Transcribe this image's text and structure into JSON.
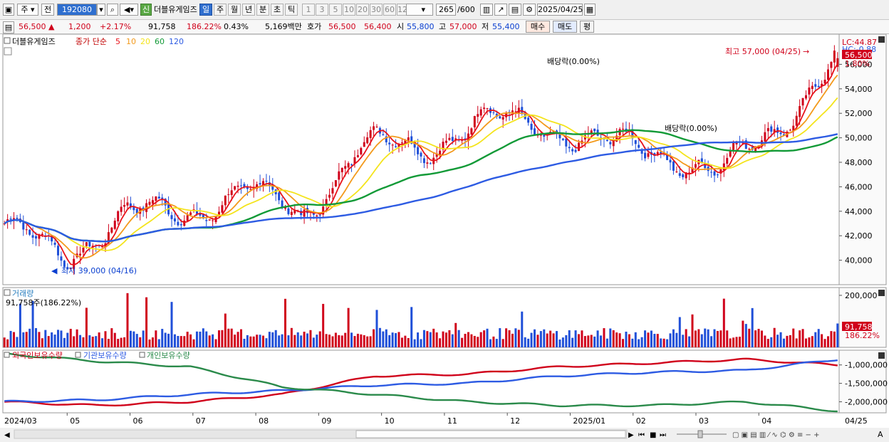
{
  "toolbar": {
    "period_label": "주",
    "prev_label": "전",
    "code": "192080",
    "new_badge": "신",
    "stock_name": "더블유게임즈",
    "timeframes": [
      "일",
      "주",
      "월",
      "년",
      "분",
      "초",
      "틱"
    ],
    "intervals": [
      "1",
      "3",
      "5",
      "10",
      "20",
      "30",
      "60",
      "120"
    ],
    "count": "265",
    "count_total": "/600",
    "date": "2025/04/25"
  },
  "quote": {
    "price": "56,500",
    "change": "1,200",
    "change_pct": "+2.17%",
    "volume": "91,758",
    "volume_ratio": "186.22%",
    "turnover": "0.43%",
    "amount": "5,169백만",
    "bid_label": "호가",
    "ask_price": "56,500",
    "bid_price": "56,400",
    "open_label": "시",
    "open": "55,800",
    "high_label": "고",
    "high": "57,000",
    "low_label": "저",
    "low": "55,400",
    "buy_label": "매수",
    "sell_label": "매도",
    "eval_label": "평"
  },
  "price_panel": {
    "name": "더블유게임즈",
    "ma_title": "종가 단순",
    "ma_periods": [
      "5",
      "10",
      "20",
      "60",
      "120"
    ],
    "ma_colors": [
      "#e8131b",
      "#f39a1c",
      "#f4e41c",
      "#129a37",
      "#2d5be3"
    ],
    "lc_label": "LC:44.87",
    "hc_label": "HC:-0.88",
    "current_label": "56,500",
    "current_pct": "1.80%",
    "high_annotation": "최고 57,000 (04/25)",
    "low_annotation": "최저 39,000 (04/16)",
    "dividend_label_1": "배당락(0.00%)",
    "dividend_label_2": "배당락(0.00%)"
  },
  "volume_panel": {
    "title": "거래량",
    "value_label": "91,758주(186.22%)",
    "current_label": "91,758",
    "current_pct": "186.22%"
  },
  "holdings_panel": {
    "series_names": [
      "외국인보유수량",
      "기관보유수량",
      "개인보유수량"
    ],
    "series_colors": [
      "#d0021b",
      "#2d5be3",
      "#2a8a4a"
    ]
  },
  "xaxis": {
    "labels": [
      "2024/03",
      "05",
      "06",
      "07",
      "08",
      "09",
      "10",
      "11",
      "12",
      "2025/01",
      "02",
      "03",
      "04"
    ],
    "right_label": "04/25"
  },
  "chart_data": [
    {
      "type": "candlestick",
      "title": "더블유게임즈",
      "x": [
        "2024/03",
        "2024/04",
        "2024/05",
        "2024/06",
        "2024/07",
        "2024/08",
        "2024/09",
        "2024/10",
        "2024/11",
        "2024/12",
        "2025/01",
        "2025/02",
        "2025/03",
        "2025/04",
        "2025/04/25"
      ],
      "close_path": [
        43000,
        40000,
        44000,
        43500,
        46000,
        43500,
        49500,
        49000,
        51500,
        51000,
        49500,
        49000,
        47000,
        51000,
        56500
      ],
      "ylim": [
        38000,
        58000
      ],
      "yticks": [
        40000,
        42000,
        44000,
        46000,
        48000,
        50000,
        52000,
        54000,
        56000
      ],
      "low_point": {
        "date": "04/16",
        "value": 39000
      },
      "high_point": {
        "date": "04/25",
        "value": 57000
      },
      "last": {
        "open": 55800,
        "high": 57000,
        "low": 55400,
        "close": 56500
      }
    },
    {
      "type": "bar",
      "title": "거래량",
      "yticks": [
        100000,
        200000
      ],
      "last_value": 91758
    },
    {
      "type": "line",
      "title": "보유수량",
      "series": [
        {
          "name": "외국인보유수량",
          "values": [
            -2000000,
            -2100000,
            -2000000,
            -1800000,
            -1300000,
            -1250000,
            -1050000,
            -950000,
            -850000,
            -1000000
          ]
        },
        {
          "name": "기관보유수량",
          "values": [
            -2000000,
            -1950000,
            -1800000,
            -1700000,
            -1550000,
            -1500000,
            -1300000,
            -1200000,
            -1150000,
            -850000
          ]
        },
        {
          "name": "개인보유수량",
          "values": [
            -700000,
            -900000,
            -1050000,
            -1600000,
            -1800000,
            -2000000,
            -2100000,
            -2100000,
            -2000000,
            -2250000
          ]
        }
      ],
      "yticks": [
        -1000000,
        -1500000,
        -2000000
      ]
    }
  ]
}
